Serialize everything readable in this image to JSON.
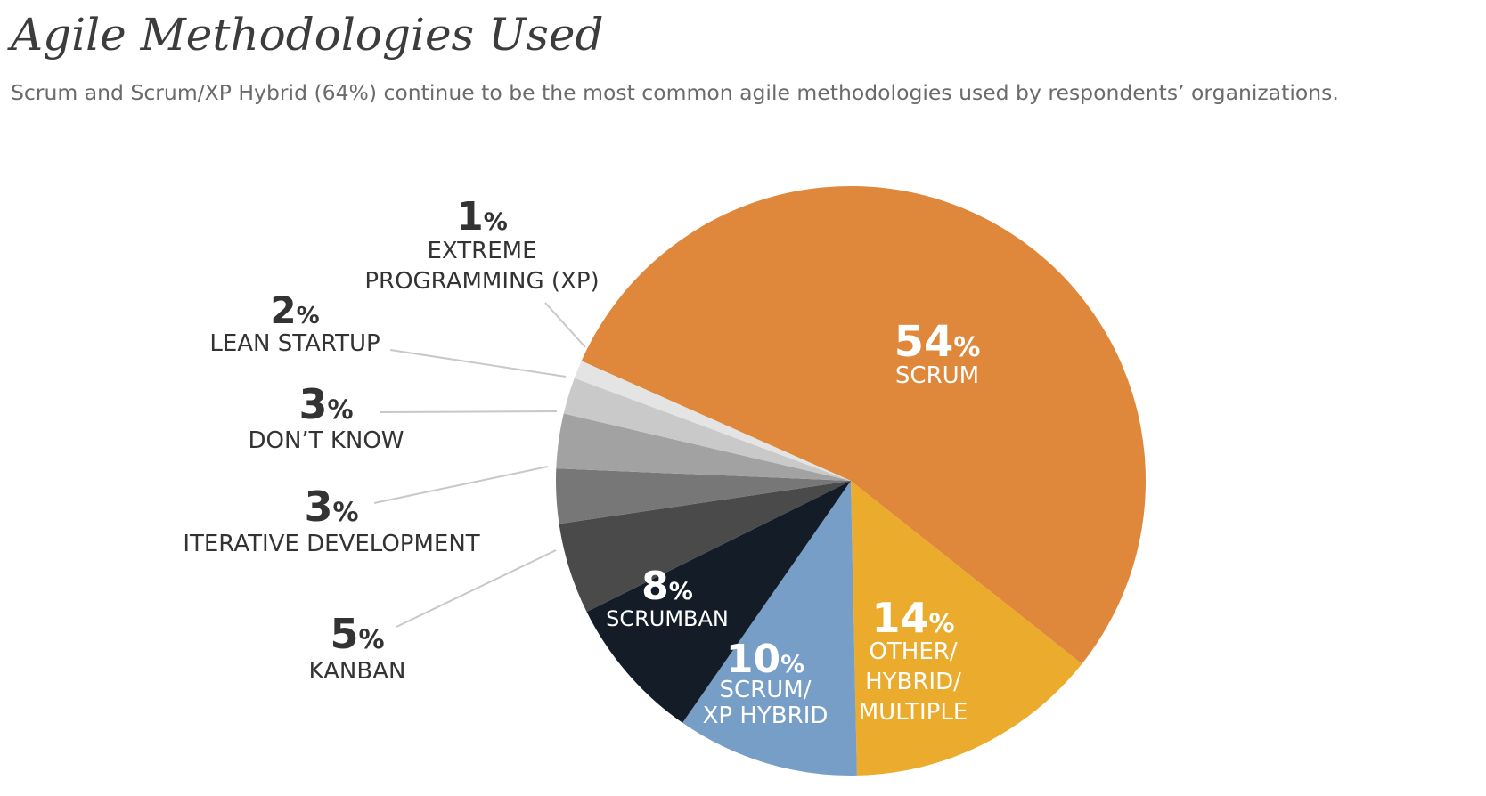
{
  "title": "Agile Methodologies Used",
  "subtitle": "Scrum and Scrum/XP Hybrid (64%) continue to be the most common agile methodologies used by respondents’ organizations.",
  "chart_data": {
    "type": "pie",
    "title": "Agile Methodologies Used",
    "unit": "%",
    "slices": [
      {
        "label": "SCRUM",
        "value": 54,
        "color": "#DF883B"
      },
      {
        "label": "OTHER/ HYBRID/ MULTIPLE",
        "value": 14,
        "color": "#EBAB2C"
      },
      {
        "label": "SCRUM/ XP HYBRID",
        "value": 10,
        "color": "#779EC6"
      },
      {
        "label": "SCRUMBAN",
        "value": 8,
        "color": "#131C27"
      },
      {
        "label": "KANBAN",
        "value": 5,
        "color": "#4A4A4A"
      },
      {
        "label": "ITERATIVE DEVELOPMENT",
        "value": 3,
        "color": "#777777"
      },
      {
        "label": "DON’T KNOW",
        "value": 3,
        "color": "#A2A2A2"
      },
      {
        "label": "LEAN STARTUP",
        "value": 2,
        "color": "#C9C9C9"
      },
      {
        "label": "EXTREME PROGRAMMING (XP)",
        "value": 1,
        "color": "#E4E4E4"
      }
    ]
  }
}
